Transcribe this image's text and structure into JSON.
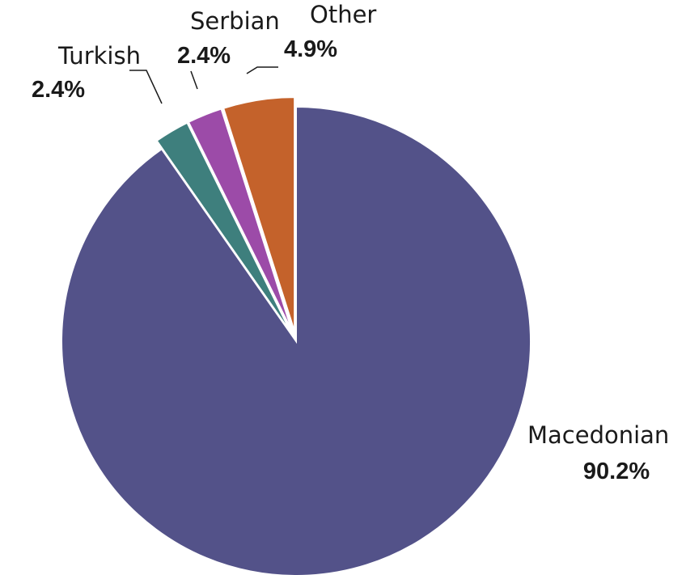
{
  "chart_data": {
    "type": "pie",
    "title": "",
    "start_angle_deg": 0,
    "direction": "clockwise",
    "slices": [
      {
        "label": "Macedonian",
        "value": 90.2,
        "display": "90.2%",
        "color": "#535289",
        "exploded": false
      },
      {
        "label": "Turkish",
        "value": 2.4,
        "display": "2.4%",
        "color": "#3E7F7D",
        "exploded": true
      },
      {
        "label": "Serbian",
        "value": 2.4,
        "display": "2.4%",
        "color": "#9C4BA8",
        "exploded": true
      },
      {
        "label": "Other",
        "value": 4.9,
        "display": "4.9%",
        "color": "#C4622B",
        "exploded": true
      }
    ],
    "legend": "none",
    "labels": "outside"
  }
}
